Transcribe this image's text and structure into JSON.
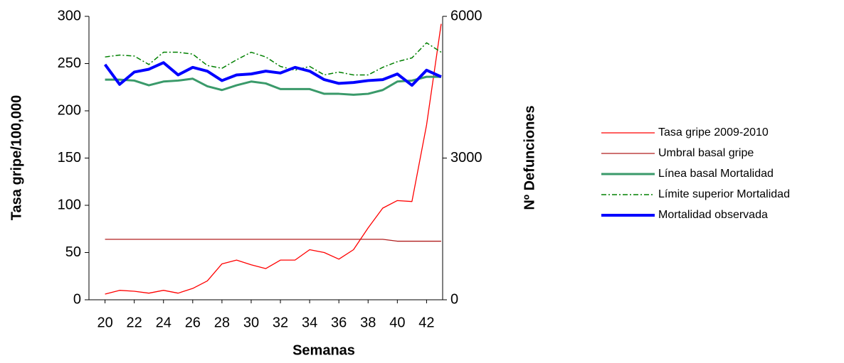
{
  "chart_data": {
    "type": "line",
    "x": [
      20,
      21,
      22,
      23,
      24,
      25,
      26,
      27,
      28,
      29,
      30,
      31,
      32,
      33,
      34,
      35,
      36,
      37,
      38,
      39,
      40,
      41,
      42,
      43
    ],
    "xlim": [
      18.9,
      43.1
    ],
    "xticks": [
      20,
      22,
      24,
      26,
      28,
      30,
      32,
      34,
      36,
      38,
      40,
      42
    ],
    "ylim": [
      0,
      300
    ],
    "yticks": [
      0,
      50,
      100,
      150,
      200,
      250,
      300
    ],
    "y2lim": [
      0,
      6000
    ],
    "y2ticks": [
      0,
      3000,
      6000
    ],
    "xlabel": "Semanas",
    "ylabel": "Tasa gripe/100,000",
    "y2label": "Nº Defunciones",
    "legend": "right",
    "series": [
      {
        "name": "Tasa gripe 2009-2010",
        "color": "#ff0000",
        "values": [
          6,
          10,
          9,
          7,
          10,
          7,
          12,
          20,
          38,
          42,
          37,
          33,
          42,
          42,
          53,
          50,
          43,
          53,
          76,
          97,
          105,
          104,
          185,
          292
        ]
      },
      {
        "name": "Umbral basal gripe",
        "color": "#b01e1e",
        "values": [
          64,
          64,
          64,
          64,
          64,
          64,
          64,
          64,
          64,
          64,
          64,
          64,
          64,
          64,
          64,
          64,
          64,
          64,
          64,
          64,
          62,
          62,
          62,
          62
        ]
      },
      {
        "name": "Línea basal Mortalidad",
        "color": "#3a9a6a",
        "axis": "y2",
        "values": [
          4660,
          4660,
          4640,
          4540,
          4620,
          4640,
          4680,
          4520,
          4440,
          4540,
          4620,
          4580,
          4460,
          4460,
          4460,
          4360,
          4360,
          4340,
          4360,
          4440,
          4620,
          4640,
          4720,
          4720
        ]
      },
      {
        "name": "Límite superior Mortalidad",
        "color": "#008000",
        "axis": "y2",
        "dash": "dash-dot",
        "values": [
          5140,
          5180,
          5160,
          4980,
          5240,
          5240,
          5200,
          4960,
          4900,
          5080,
          5240,
          5140,
          4940,
          4860,
          4940,
          4760,
          4820,
          4760,
          4760,
          4920,
          5040,
          5120,
          5440,
          5240
        ]
      },
      {
        "name": "Mortalidad observada",
        "color": "#0000ff",
        "axis": "y2",
        "values": [
          4980,
          4560,
          4820,
          4880,
          5020,
          4760,
          4920,
          4840,
          4640,
          4760,
          4780,
          4840,
          4800,
          4920,
          4840,
          4660,
          4580,
          4600,
          4640,
          4660,
          4780,
          4540,
          4860,
          4720
        ]
      }
    ]
  }
}
